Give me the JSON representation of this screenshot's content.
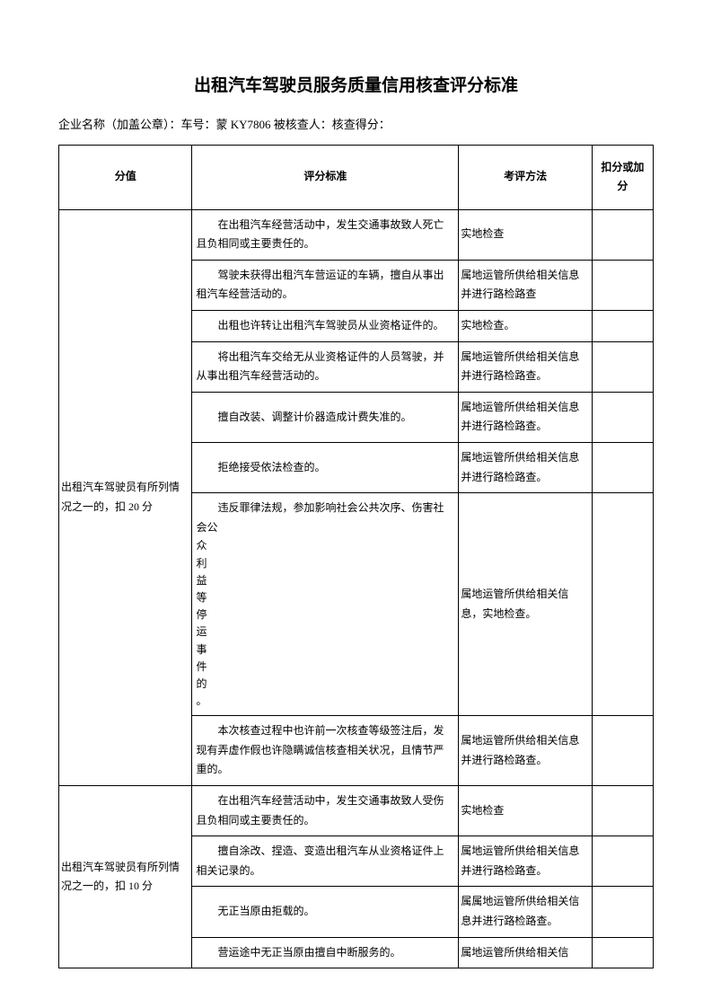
{
  "title": "出租汽车驾驶员服务质量信用核查评分标准",
  "subtitle": "企业名称（加盖公章）：车号：蒙 KY7806 被核查人：核查得分：",
  "headers": {
    "score": "分值",
    "criteria": "评分标准",
    "method": "考评方法",
    "deduct": "扣分或加分"
  },
  "group1": {
    "scoreLabel": "出租汽车驾驶员有所列情况之一的，扣 20 分",
    "rows": [
      {
        "criteria": "在出租汽车经营活动中，发生交通事故致人死亡且负相同或主要责任的。",
        "method": "实地检查"
      },
      {
        "criteria": "驾驶未获得出租汽车营运证的车辆，擅自从事出租汽车经营活动的。",
        "method": "属地运管所供给相关信息并进行路检路查"
      },
      {
        "criteria": "出租也许转让出租汽车驾驶员从业资格证件的。",
        "method": "实地检查。"
      },
      {
        "criteria": "将出租汽车交给无从业资格证件的人员驾驶，并从事出租汽车经营活动的。",
        "method": "属地运管所供给相关信息并进行路检路查。"
      },
      {
        "criteria": "擅自改装、调整计价器造成计费失准的。",
        "method": "属地运管所供给相关信息并进行路检路查。"
      },
      {
        "criteria": "拒绝接受依法检查的。",
        "method": "属地运管所供给相关信息并进行路检路查。"
      },
      {
        "criteriaFirst": "违反罪律法规，参加影响社会公共次序、伤害社会公",
        "criteriaVertical": "众利益等停运事件的。",
        "method": "属地运管所供给相关信息，实地检查。"
      },
      {
        "criteria": "本次核查过程中也许前一次核查等级签注后，发现有弄虚作假也许隐瞒诚信核查相关状况，且情节严重的。",
        "method": "属地运管所供给相关信息并进行路检路查。"
      }
    ]
  },
  "group2": {
    "scoreLabel": "出租汽车驾驶员有所列情况之一的，扣 10 分",
    "rows": [
      {
        "criteria": "在出租汽车经营活动中，发生交通事故致人受伤且负相同或主要责任的。",
        "method": "实地检查"
      },
      {
        "criteria": "擅自涂改、捏造、变造出租汽车从业资格证件上相关记录的。",
        "method": "属地运管所供给相关信息并进行路检路查。"
      },
      {
        "criteria": "无正当原由拒载的。",
        "method": "属属地运管所供给相关信息并进行路检路查。"
      },
      {
        "criteria": "营运途中无正当原由擅自中断服务的。",
        "method": "属地运管所供给相关信"
      }
    ]
  }
}
